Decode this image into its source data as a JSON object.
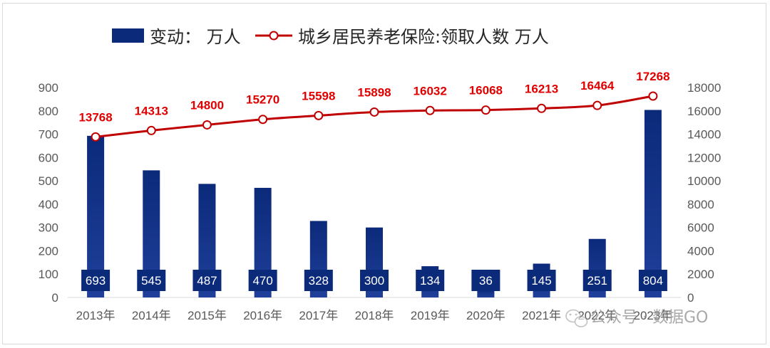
{
  "chart_data": {
    "type": "bar",
    "title": "",
    "categories": [
      "2013年",
      "2014年",
      "2015年",
      "2016年",
      "2017年",
      "2018年",
      "2019年",
      "2020年",
      "2021年",
      "2022年",
      "2023年"
    ],
    "series": [
      {
        "name": "变动： 万人",
        "type": "bar",
        "axis": "left",
        "color": "#0b2a7a",
        "values": [
          693,
          545,
          487,
          470,
          328,
          300,
          134,
          36,
          145,
          251,
          804
        ]
      },
      {
        "name": "城乡居民养老保险:领取人数 万人",
        "type": "line",
        "axis": "right",
        "color": "#c00000",
        "values": [
          13768,
          14313,
          14800,
          15270,
          15598,
          15898,
          16032,
          16068,
          16213,
          16464,
          17268
        ]
      }
    ],
    "y_left": {
      "min": 0,
      "max": 900,
      "step": 100
    },
    "y_right": {
      "min": 0,
      "max": 18000,
      "step": 2000
    },
    "legend_position": "top",
    "grid": false
  },
  "watermark": {
    "text": "公众号 · 数据GO",
    "icon": "wechat-icon"
  }
}
